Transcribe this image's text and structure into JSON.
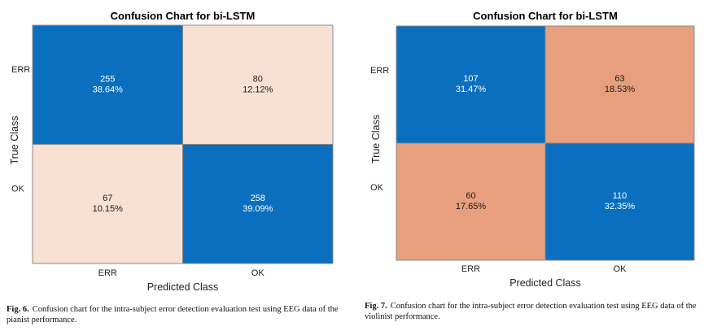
{
  "figures": [
    {
      "id": "fig6",
      "caption_label": "Fig. 6.",
      "caption_text": "Confusion chart for the intra-subject error detection evaluation test using EEG data of the pianist performance."
    },
    {
      "id": "fig7",
      "caption_label": "Fig. 7.",
      "caption_text": "Confusion chart for the intra-subject error detection evaluation test using EEG data of the violinist performance."
    }
  ],
  "chart_data": [
    {
      "type": "heatmap",
      "title": "Confusion Chart for bi-LSTM",
      "xlabel": "Predicted Class",
      "ylabel": "True Class",
      "row_labels": [
        "ERR",
        "OK"
      ],
      "col_labels": [
        "ERR",
        "OK"
      ],
      "counts": [
        [
          255,
          80
        ],
        [
          67,
          258
        ]
      ],
      "percents": [
        [
          "38.64%",
          "12.12%"
        ],
        [
          "10.15%",
          "39.09%"
        ]
      ],
      "colors": {
        "correct": "#0b6fbf",
        "incorrect": "#f8e0d3"
      }
    },
    {
      "type": "heatmap",
      "title": "Confusion Chart for bi-LSTM",
      "xlabel": "Predicted Class",
      "ylabel": "True Class",
      "row_labels": [
        "ERR",
        "OK"
      ],
      "col_labels": [
        "ERR",
        "OK"
      ],
      "counts": [
        [
          107,
          63
        ],
        [
          60,
          110
        ]
      ],
      "percents": [
        [
          "31.47%",
          "18.53%"
        ],
        [
          "17.65%",
          "32.35%"
        ]
      ],
      "colors": {
        "correct": "#0b6fbf",
        "incorrect": "#e89f7d"
      }
    }
  ]
}
